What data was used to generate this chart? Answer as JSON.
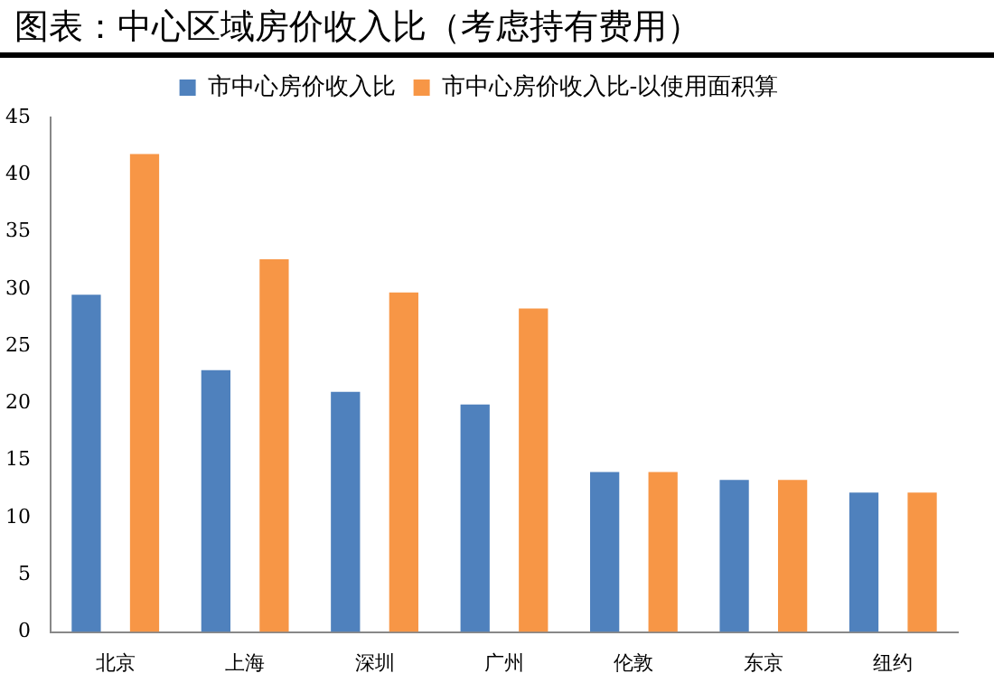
{
  "chart_data": {
    "type": "bar",
    "title": "图表：中心区域房价收入比（考虑持有费用）",
    "categories": [
      "北京",
      "上海",
      "深圳",
      "广州",
      "伦敦",
      "东京",
      "纽约"
    ],
    "series": [
      {
        "name": "市中心房价收入比",
        "color": "#4f81bd",
        "values": [
          29.5,
          22.9,
          21.0,
          19.9,
          14.0,
          13.3,
          12.2
        ]
      },
      {
        "name": "市中心房价收入比-以使用面积算",
        "color": "#f79646",
        "values": [
          41.8,
          32.6,
          29.7,
          28.3,
          14.0,
          13.3,
          12.2
        ]
      }
    ],
    "ylim": [
      0,
      45
    ],
    "yticks": [
      0,
      5,
      10,
      15,
      20,
      25,
      30,
      35,
      40,
      45
    ],
    "grid": false,
    "legend": "top"
  }
}
